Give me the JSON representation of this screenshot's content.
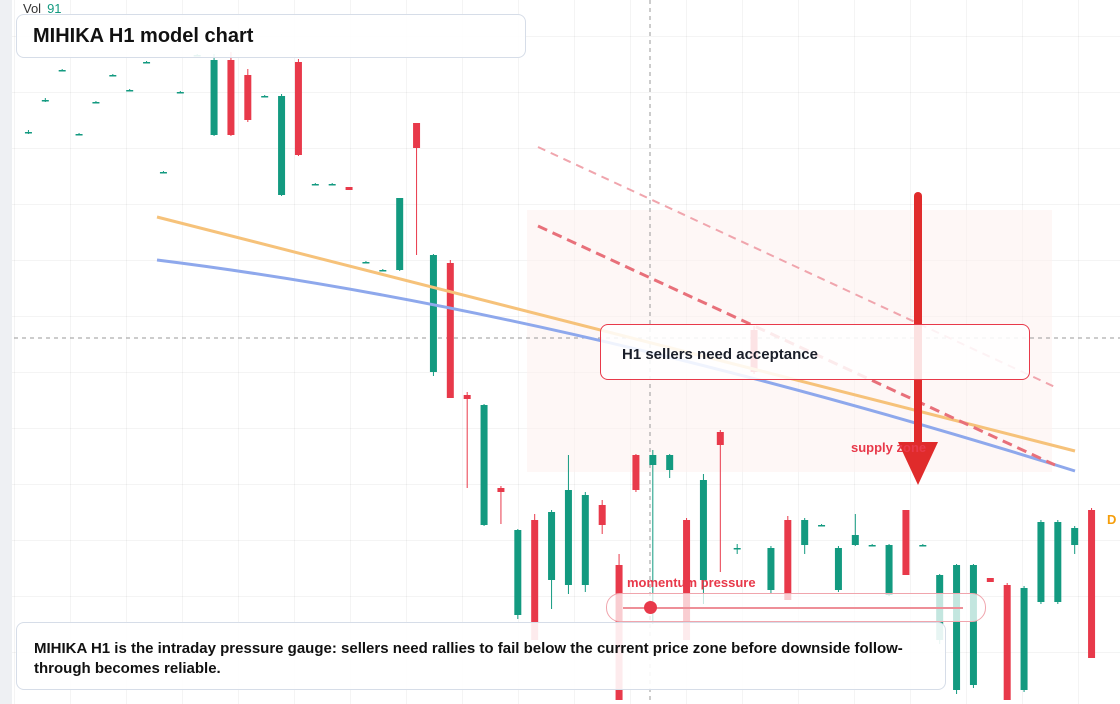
{
  "chart_data": {
    "type": "candlestick",
    "title": "MIHIKA H1 model chart",
    "volume_label": "Vol",
    "volume_value": "91",
    "edge_label": "D",
    "annotations": {
      "box": "H1 sellers need acceptance",
      "zone": "supply zone",
      "gauge": "momentum pressure"
    },
    "footer": "MIHIKA H1 is the intraday pressure gauge: sellers need rallies to fail below the current price zone before downside follow-through becomes reliable.",
    "up_color": "#139a80",
    "down_color": "#e8394a",
    "ylim": [
      0,
      704
    ],
    "categories": [
      null,
      null,
      null,
      null,
      null,
      null,
      null,
      null,
      null,
      null,
      null,
      null,
      null,
      null,
      null,
      null,
      null,
      null,
      null,
      null,
      null,
      null,
      null,
      null,
      null,
      null,
      null,
      null,
      null,
      null,
      null,
      null,
      null,
      null,
      null,
      null,
      null,
      null,
      null,
      null,
      null,
      null,
      null,
      null,
      null,
      null,
      null,
      null,
      null,
      null,
      null,
      null,
      null,
      null,
      null,
      null,
      null,
      null,
      null,
      null,
      null,
      null,
      null,
      null
    ],
    "ohlc": [
      [
        572,
        574,
        570,
        572
      ],
      [
        604,
        606,
        602,
        604
      ],
      [
        634,
        635,
        633,
        634
      ],
      [
        570,
        571,
        569,
        570
      ],
      [
        602,
        603,
        601,
        602
      ],
      [
        629,
        630,
        628,
        629
      ],
      [
        614,
        615,
        613,
        614
      ],
      [
        642,
        643,
        641,
        642
      ],
      [
        532,
        533,
        531,
        532
      ],
      [
        612,
        613,
        611,
        612
      ],
      [
        649,
        650,
        648,
        649
      ],
      [
        569,
        650,
        568,
        644
      ],
      [
        644,
        652,
        568,
        569
      ],
      [
        629,
        635,
        582,
        584
      ],
      [
        608,
        609,
        607,
        608
      ],
      [
        509,
        610,
        508,
        608
      ],
      [
        642,
        645,
        548,
        549
      ],
      [
        520,
        521,
        519,
        520
      ],
      [
        520,
        521,
        519,
        520
      ],
      [
        517,
        517,
        514,
        514
      ],
      [
        442,
        443,
        441,
        442
      ],
      [
        434,
        435,
        433,
        434
      ],
      [
        434,
        506,
        433,
        506
      ],
      [
        581,
        581,
        449,
        556
      ],
      [
        332,
        450,
        328,
        449
      ],
      [
        441,
        444,
        306,
        306
      ],
      [
        309,
        312,
        216,
        305
      ],
      [
        179,
        300,
        178,
        299
      ],
      [
        216,
        218,
        180,
        212
      ],
      [
        89,
        175,
        85,
        174
      ],
      [
        184,
        190,
        64,
        64
      ],
      [
        124,
        194,
        95,
        192
      ],
      [
        119,
        249,
        110,
        214
      ],
      [
        119,
        212,
        112,
        209
      ],
      [
        199,
        204,
        170,
        179
      ],
      [
        139,
        150,
        4,
        4
      ],
      [
        249,
        250,
        212,
        214
      ],
      [
        239,
        254,
        80,
        249
      ],
      [
        234,
        250,
        226,
        249
      ],
      [
        184,
        186,
        64,
        64
      ],
      [
        124,
        230,
        100,
        224
      ],
      [
        272,
        274,
        132,
        259
      ],
      [
        156,
        160,
        150,
        156
      ],
      [
        374,
        378,
        330,
        332
      ],
      [
        114,
        158,
        110,
        156
      ],
      [
        184,
        188,
        104,
        104
      ],
      [
        159,
        186,
        150,
        184
      ],
      [
        179,
        180,
        178,
        179
      ],
      [
        114,
        158,
        112,
        156
      ],
      [
        159,
        190,
        158,
        169
      ],
      [
        159,
        160,
        158,
        159
      ],
      [
        109,
        160,
        108,
        159
      ],
      [
        194,
        194,
        129,
        129
      ],
      [
        159,
        160,
        158,
        159
      ],
      [
        64,
        130,
        60,
        129
      ],
      [
        14,
        140,
        10,
        139
      ],
      [
        19,
        140,
        16,
        139
      ],
      [
        126,
        126,
        122,
        122
      ],
      [
        119,
        121,
        4,
        4
      ],
      [
        14,
        118,
        12,
        116
      ],
      [
        102,
        184,
        100,
        182
      ],
      [
        102,
        184,
        100,
        182
      ],
      [
        159,
        178,
        150,
        176
      ],
      [
        194,
        196,
        46,
        46
      ]
    ]
  }
}
